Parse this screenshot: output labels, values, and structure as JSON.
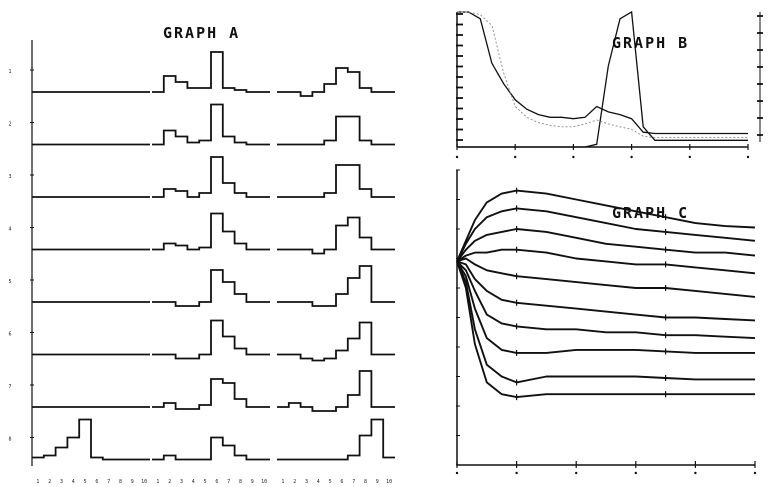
{
  "chart_data": [
    {
      "id": "A",
      "type": "step",
      "title": "GRAPH A",
      "y_tick_labels": [
        "1",
        "2",
        "3",
        "4",
        "5",
        "6",
        "7",
        "8"
      ],
      "x_tick_labels": [
        "1",
        "2",
        "3",
        "4",
        "5",
        "6",
        "7",
        "8",
        "9",
        "10"
      ],
      "panels": [
        {
          "rows": [
            [
              0,
              0,
              0,
              0,
              0,
              0,
              0,
              0,
              0,
              0
            ],
            [
              0,
              0,
              0,
              0,
              0,
              0,
              0,
              0,
              0,
              0
            ],
            [
              0,
              0,
              0,
              0,
              0,
              0,
              0,
              0,
              0,
              0
            ],
            [
              0,
              0,
              0,
              0,
              0,
              0,
              0,
              0,
              0,
              0
            ],
            [
              0,
              0,
              0,
              0,
              0,
              0,
              0,
              0,
              0,
              0
            ],
            [
              0,
              0,
              0,
              0,
              0,
              0,
              0,
              0,
              0,
              0
            ],
            [
              0,
              0,
              0,
              0,
              0,
              0,
              0,
              0,
              0,
              0
            ],
            [
              0.05,
              0.1,
              0.3,
              0.55,
              1.0,
              0.05,
              0,
              0,
              0,
              0
            ]
          ]
        },
        {
          "rows": [
            [
              0,
              0.4,
              0.25,
              0.1,
              0.1,
              1.0,
              0.1,
              0.05,
              0,
              0
            ],
            [
              0,
              0.35,
              0.2,
              0.05,
              0.1,
              1.0,
              0.2,
              0.05,
              0,
              0
            ],
            [
              0,
              0.2,
              0.15,
              0,
              0.1,
              1.0,
              0.35,
              0.1,
              0,
              0
            ],
            [
              0,
              0.15,
              0.1,
              0,
              0.05,
              0.9,
              0.45,
              0.15,
              0,
              0
            ],
            [
              0,
              0,
              -0.1,
              -0.1,
              0,
              0.8,
              0.5,
              0.2,
              0,
              0
            ],
            [
              0,
              0,
              -0.1,
              -0.1,
              0,
              0.85,
              0.45,
              0.15,
              0,
              0
            ],
            [
              0,
              0.1,
              -0.05,
              -0.05,
              0.05,
              0.7,
              0.6,
              0.2,
              0,
              0
            ],
            [
              0,
              0.1,
              0,
              0,
              0,
              0.55,
              0.35,
              0.1,
              0,
              0
            ]
          ]
        },
        {
          "rows": [
            [
              0,
              0,
              -0.1,
              0,
              0.2,
              0.6,
              0.5,
              0.1,
              0,
              0
            ],
            [
              0,
              0,
              0,
              0,
              0.1,
              0.7,
              0.7,
              0.1,
              0,
              0
            ],
            [
              0,
              0,
              0,
              0,
              0.1,
              0.8,
              0.8,
              0.2,
              0,
              0
            ],
            [
              0,
              0,
              0,
              -0.1,
              0,
              0.6,
              0.8,
              0.3,
              0,
              0
            ],
            [
              0,
              0,
              0,
              -0.1,
              -0.1,
              0.2,
              0.6,
              0.9,
              0,
              0
            ],
            [
              0,
              0,
              -0.1,
              -0.15,
              -0.1,
              0.1,
              0.4,
              0.8,
              0,
              0
            ],
            [
              0,
              0.1,
              0,
              -0.1,
              -0.1,
              0,
              0.3,
              0.9,
              0,
              0
            ],
            [
              0,
              0,
              0,
              0,
              0,
              0,
              0.1,
              0.6,
              1.0,
              0.05
            ]
          ]
        }
      ]
    },
    {
      "id": "B",
      "type": "line",
      "title": "GRAPH B",
      "x": [
        0,
        0.2,
        0.4,
        0.6,
        0.8,
        1.0,
        1.2,
        1.4,
        1.6,
        1.8,
        2.0,
        2.2,
        2.4,
        2.6,
        2.8,
        3.0,
        3.2,
        3.4,
        3.6,
        3.8,
        4.0,
        4.2,
        4.4,
        4.6,
        4.8,
        5.0
      ],
      "xlim": [
        0,
        5
      ],
      "ylim": [
        0,
        1
      ],
      "x_ticks": [
        0,
        1,
        2,
        3,
        4,
        5
      ],
      "series": [
        {
          "values": [
            1.0,
            1.0,
            0.95,
            0.62,
            0.47,
            0.35,
            0.28,
            0.24,
            0.22,
            0.22,
            0.21,
            0.22,
            0.3,
            0.26,
            0.24,
            0.21,
            0.11,
            0.1,
            0.1,
            0.1,
            0.1,
            0.1,
            0.1,
            0.1,
            0.1,
            0.1
          ]
        },
        {
          "values": [
            0,
            0,
            0,
            0,
            0,
            0,
            0,
            0,
            0,
            0,
            0,
            0,
            0.02,
            0.6,
            0.95,
            1.0,
            0.15,
            0.05,
            0.05,
            0.05,
            0.05,
            0.05,
            0.05,
            0.05,
            0.05,
            0.05
          ]
        },
        {
          "values": [
            1.0,
            1.0,
            0.98,
            0.9,
            0.55,
            0.3,
            0.22,
            0.18,
            0.16,
            0.15,
            0.15,
            0.17,
            0.2,
            0.17,
            0.15,
            0.13,
            0.08,
            0.07,
            0.07,
            0.07,
            0.07,
            0.07,
            0.07,
            0.07,
            0.07,
            0.07
          ]
        }
      ]
    },
    {
      "id": "C",
      "type": "line",
      "title": "GRAPH C",
      "x": [
        0,
        0.3,
        0.6,
        1.0,
        1.5,
        2.0,
        3.0,
        4.0,
        5.0,
        6.0,
        7.0,
        8.0,
        9.0,
        10.0
      ],
      "xlim": [
        0,
        10
      ],
      "ylim": [
        0,
        10
      ],
      "x_ticks": [
        0,
        2,
        4,
        6,
        8,
        10
      ],
      "y_ticks": [
        0,
        1,
        2,
        3,
        4,
        5,
        6,
        7,
        8,
        9,
        10
      ],
      "series": [
        {
          "values": [
            6.9,
            7.6,
            8.3,
            8.9,
            9.2,
            9.3,
            9.2,
            9.0,
            8.8,
            8.6,
            8.4,
            8.2,
            8.1,
            8.05
          ]
        },
        {
          "values": [
            6.9,
            7.5,
            8.0,
            8.4,
            8.6,
            8.7,
            8.6,
            8.4,
            8.2,
            8.0,
            7.9,
            7.8,
            7.7,
            7.6
          ]
        },
        {
          "values": [
            6.9,
            7.3,
            7.6,
            7.8,
            7.9,
            8.0,
            7.9,
            7.7,
            7.5,
            7.4,
            7.3,
            7.2,
            7.2,
            7.1
          ]
        },
        {
          "values": [
            6.9,
            7.1,
            7.2,
            7.2,
            7.3,
            7.3,
            7.2,
            7.0,
            6.9,
            6.8,
            6.8,
            6.7,
            6.6,
            6.5
          ]
        },
        {
          "values": [
            6.9,
            7.0,
            6.8,
            6.6,
            6.5,
            6.4,
            6.3,
            6.2,
            6.1,
            6.0,
            6.0,
            5.9,
            5.8,
            5.7
          ]
        },
        {
          "values": [
            6.9,
            6.8,
            6.3,
            5.9,
            5.6,
            5.5,
            5.4,
            5.3,
            5.2,
            5.1,
            5.0,
            5.0,
            4.95,
            4.9
          ]
        },
        {
          "values": [
            6.9,
            6.6,
            5.9,
            5.1,
            4.8,
            4.7,
            4.6,
            4.6,
            4.5,
            4.5,
            4.4,
            4.4,
            4.35,
            4.3
          ]
        },
        {
          "values": [
            6.9,
            6.4,
            5.3,
            4.3,
            3.9,
            3.8,
            3.8,
            3.9,
            3.9,
            3.9,
            3.85,
            3.8,
            3.8,
            3.8
          ]
        },
        {
          "values": [
            6.9,
            6.2,
            4.6,
            3.4,
            3.0,
            2.8,
            3.0,
            3.0,
            3.0,
            3.0,
            2.95,
            2.9,
            2.9,
            2.9
          ]
        },
        {
          "values": [
            6.9,
            6.0,
            4.1,
            2.8,
            2.4,
            2.3,
            2.4,
            2.4,
            2.4,
            2.4,
            2.4,
            2.4,
            2.4,
            2.4
          ]
        }
      ]
    }
  ]
}
